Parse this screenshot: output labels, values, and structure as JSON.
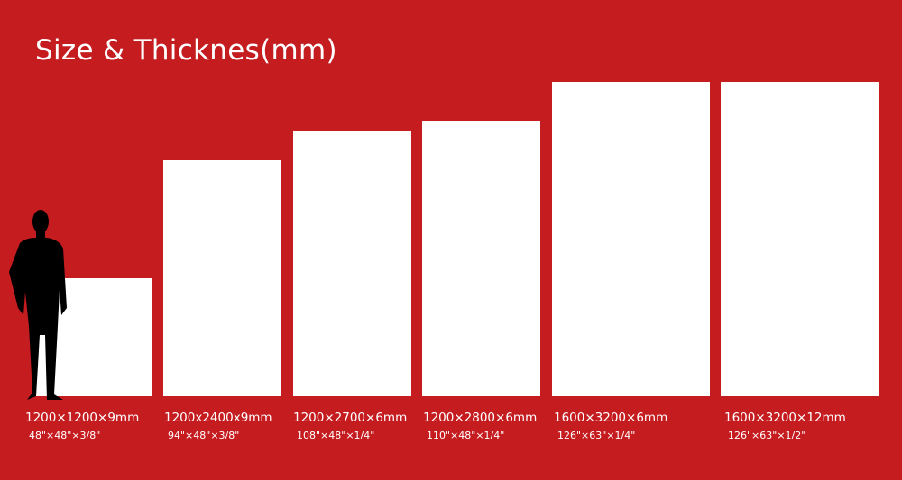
{
  "title": "Size & Thicknes(mm)",
  "colors": {
    "background": "#c51c20",
    "slab": "#ffffff",
    "person": "#000000"
  },
  "person_icon": "businessman-silhouette-icon",
  "sizes": [
    {
      "mm": "1200×1200×9mm",
      "inch": "48\"×48\"×3/8\""
    },
    {
      "mm": "1200x2400x9mm",
      "inch": "94\"×48\"×3/8\""
    },
    {
      "mm": "1200×2700×6mm",
      "inch": "108\"×48\"×1/4\""
    },
    {
      "mm": "1200×2800×6mm",
      "inch": "110\"×48\"×1/4\""
    },
    {
      "mm": "1600×3200×6mm",
      "inch": "126\"×63\"×1/4\""
    },
    {
      "mm": "1600×3200×12mm",
      "inch": "126\"×63\"×1/2\""
    }
  ]
}
